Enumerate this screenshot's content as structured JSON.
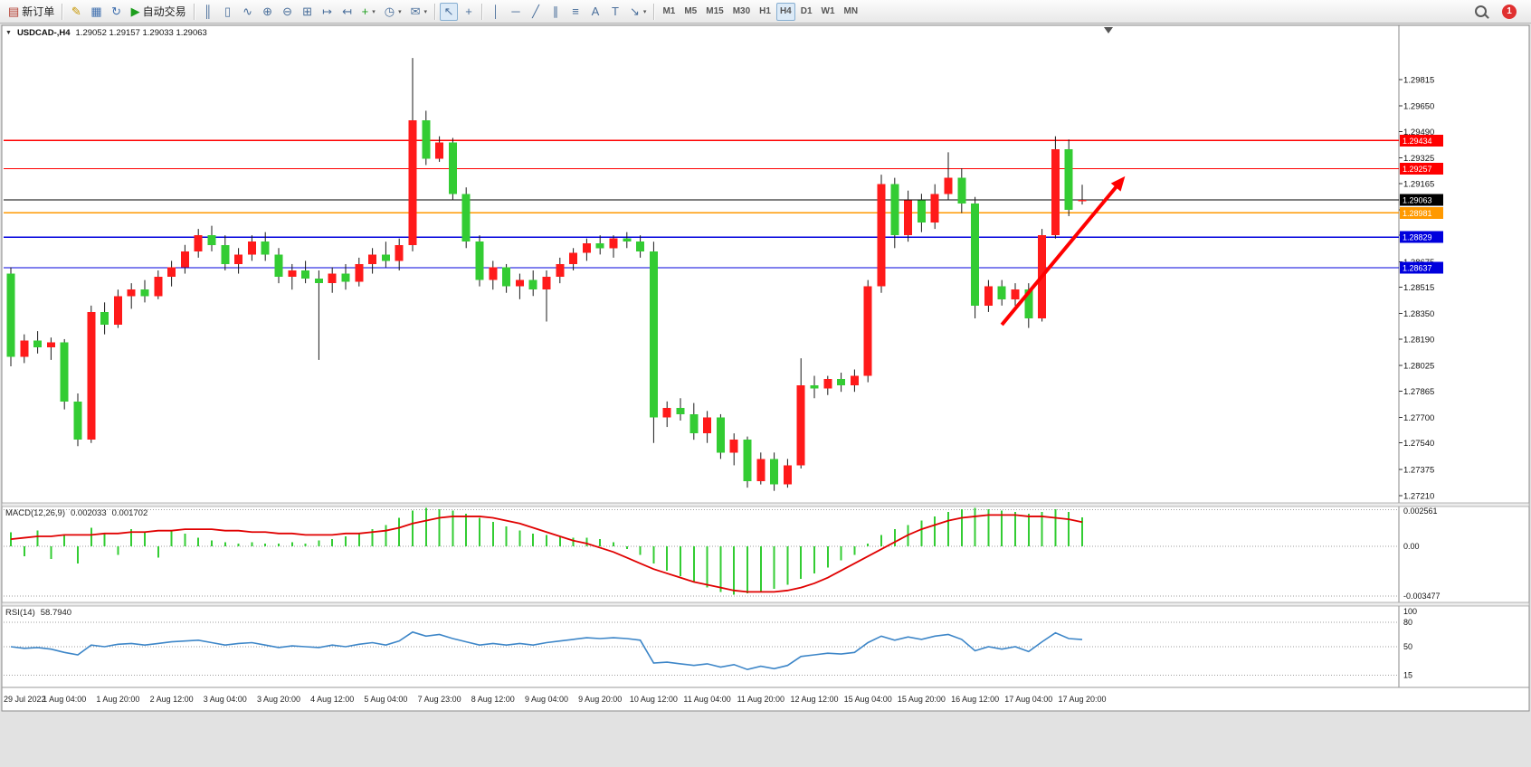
{
  "app": {
    "toolbar": {
      "items": [
        {
          "name": "new-order-button",
          "icon": "new-order-icon",
          "glyph": "▤",
          "glyph_color": "#b23b2e",
          "label": "新订单"
        },
        {
          "type": "sep"
        },
        {
          "name": "metaeditor-button",
          "icon": "pencil-icon",
          "glyph": "✎",
          "glyph_color": "#c79600"
        },
        {
          "name": "market-watch-button",
          "icon": "market-watch-icon",
          "glyph": "▦",
          "glyph_color": "#3f6fae"
        },
        {
          "name": "refresh-button",
          "icon": "refresh-icon",
          "glyph": "↻",
          "glyph_color": "#3f6fae"
        },
        {
          "name": "auto-trading-button",
          "icon": "play-icon",
          "glyph": "▶",
          "glyph_color": "#1d9e1d",
          "label": "自动交易"
        },
        {
          "type": "sep"
        },
        {
          "name": "bar-chart-button",
          "icon": "bar-chart-icon",
          "glyph": "║"
        },
        {
          "name": "candlestick-chart-button",
          "icon": "candlestick-chart-icon",
          "glyph": "▯"
        },
        {
          "name": "line-chart-button",
          "icon": "line-chart-icon",
          "glyph": "∿"
        },
        {
          "name": "zoom-in-button",
          "icon": "zoom-in-icon",
          "glyph": "⊕"
        },
        {
          "name": "zoom-out-button",
          "icon": "zoom-out-icon",
          "glyph": "⊖"
        },
        {
          "name": "tile-windows-button",
          "icon": "tile-windows-icon",
          "glyph": "⊞"
        },
        {
          "name": "auto-scroll-button",
          "icon": "auto-scroll-icon",
          "glyph": "↦"
        },
        {
          "name": "chart-shift-button",
          "icon": "chart-shift-icon",
          "glyph": "↤"
        },
        {
          "name": "indicators-button",
          "icon": "add-indicator-icon",
          "glyph": "+",
          "glyph_color": "#1d9e1d",
          "dropdown": true
        },
        {
          "name": "periods-button",
          "icon": "clock-icon",
          "glyph": "◷",
          "dropdown": true
        },
        {
          "name": "templates-button",
          "icon": "templates-icon",
          "glyph": "✉",
          "dropdown": true
        },
        {
          "type": "sep"
        },
        {
          "name": "cursor-button",
          "icon": "cursor-icon",
          "glyph": "↖",
          "active": true
        },
        {
          "name": "crosshair-button",
          "icon": "crosshair-icon",
          "glyph": "+"
        },
        {
          "type": "sep"
        },
        {
          "name": "vertical-line-button",
          "icon": "vertical-line-icon",
          "glyph": "│"
        },
        {
          "name": "horizontal-line-button",
          "icon": "horizontal-line-icon",
          "glyph": "─"
        },
        {
          "name": "trendline-button",
          "icon": "trendline-icon",
          "glyph": "╱"
        },
        {
          "name": "equidistant-channel-button",
          "icon": "channel-icon",
          "glyph": "∥"
        },
        {
          "name": "fibonacci-button",
          "icon": "fibonacci-icon",
          "glyph": "≡"
        },
        {
          "name": "text-button",
          "icon": "text-icon",
          "glyph": "A"
        },
        {
          "name": "text-label-button",
          "icon": "text-label-icon",
          "glyph": "T"
        },
        {
          "name": "arrows-button",
          "icon": "arrows-icon",
          "glyph": "↘",
          "dropdown": true
        },
        {
          "type": "sep"
        },
        {
          "name": "timeframe-m1-button",
          "label": "M1",
          "tf": true
        },
        {
          "name": "timeframe-m5-button",
          "label": "M5",
          "tf": true
        },
        {
          "name": "timeframe-m15-button",
          "label": "M15",
          "tf": true
        },
        {
          "name": "timeframe-m30-button",
          "label": "M30",
          "tf": true
        },
        {
          "name": "timeframe-h1-button",
          "label": "H1",
          "tf": true
        },
        {
          "name": "timeframe-h4-button",
          "label": "H4",
          "tf": true,
          "active": true
        },
        {
          "name": "timeframe-d1-button",
          "label": "D1",
          "tf": true
        },
        {
          "name": "timeframe-w1-button",
          "label": "W1",
          "tf": true
        },
        {
          "name": "timeframe-mn-button",
          "label": "MN",
          "tf": true
        }
      ],
      "right": [
        {
          "name": "symbol-search-button",
          "icon": "search-icon",
          "search": true
        },
        {
          "name": "notifications-badge",
          "label": "1",
          "badge": true
        }
      ]
    }
  },
  "chart": {
    "symbol_period": "USDCAD-,H4",
    "ohlc": "1.29052 1.29157 1.29033 1.29063"
  },
  "indicators": {
    "macd_label": "MACD(12,26,9)",
    "macd_value": "0.002033",
    "macd_signal_value": "0.001702",
    "rsi_label": "RSI(14)",
    "rsi_value": "58.7940"
  },
  "chart_data": {
    "type": "candlestick",
    "symbol": "USDCAD-",
    "timeframe": "H4",
    "current_ohlc": {
      "open": 1.29052,
      "high": 1.29157,
      "low": 1.29033,
      "close": 1.29063
    },
    "colors": {
      "up": "#ff1a1a",
      "down": "#33cc33",
      "wick": "#1a1a1a",
      "macd_hist": "#33cc33",
      "macd_signal": "#e00000",
      "rsi_line": "#3d86c8",
      "arrow": "#ff0000"
    },
    "price_axis": {
      "ticks": [
        1.29815,
        1.2965,
        1.2949,
        1.29325,
        1.29165,
        1.29,
        1.2884,
        1.28675,
        1.28515,
        1.2835,
        1.2819,
        1.28025,
        1.27865,
        1.277,
        1.2754,
        1.27375,
        1.2721
      ]
    },
    "hlines": [
      {
        "price": 1.29434,
        "color": "#ff0000",
        "label": "1.29434"
      },
      {
        "price": 1.29257,
        "color": "#ff0000",
        "label": "1.29257"
      },
      {
        "price": 1.29063,
        "color": "#000000",
        "label": "1.29063"
      },
      {
        "price": 1.28981,
        "color": "#ff9900",
        "label": "1.28981"
      },
      {
        "price": 1.28829,
        "color": "#0000dd",
        "label": "1.28829"
      },
      {
        "price": 1.28637,
        "color": "#0000dd",
        "label": "1.28637"
      }
    ],
    "candles": [
      [
        1.286,
        1.2864,
        1.2802,
        1.2808
      ],
      [
        1.2808,
        1.2822,
        1.2804,
        1.2818
      ],
      [
        1.2818,
        1.2824,
        1.281,
        1.2814
      ],
      [
        1.2814,
        1.282,
        1.2806,
        1.2817
      ],
      [
        1.2817,
        1.2819,
        1.2775,
        1.278
      ],
      [
        1.278,
        1.2785,
        1.2752,
        1.2756
      ],
      [
        1.2756,
        1.284,
        1.2754,
        1.2836
      ],
      [
        1.2836,
        1.2842,
        1.2822,
        1.2828
      ],
      [
        1.2828,
        1.285,
        1.2826,
        1.2846
      ],
      [
        1.2846,
        1.2854,
        1.2838,
        1.285
      ],
      [
        1.285,
        1.2856,
        1.2842,
        1.2846
      ],
      [
        1.2846,
        1.2862,
        1.2844,
        1.2858
      ],
      [
        1.2858,
        1.2868,
        1.2852,
        1.2864
      ],
      [
        1.2864,
        1.2878,
        1.286,
        1.2874
      ],
      [
        1.2874,
        1.2888,
        1.287,
        1.2884
      ],
      [
        1.2884,
        1.289,
        1.2874,
        1.2878
      ],
      [
        1.2878,
        1.2884,
        1.2862,
        1.2866
      ],
      [
        1.2866,
        1.2876,
        1.286,
        1.2872
      ],
      [
        1.2872,
        1.2884,
        1.2868,
        1.288
      ],
      [
        1.288,
        1.2886,
        1.2868,
        1.2872
      ],
      [
        1.2872,
        1.2876,
        1.2854,
        1.2858
      ],
      [
        1.2858,
        1.2866,
        1.285,
        1.2862
      ],
      [
        1.2862,
        1.2868,
        1.2854,
        1.2857
      ],
      [
        1.2857,
        1.2862,
        1.2806,
        1.2854
      ],
      [
        1.2854,
        1.2864,
        1.2848,
        1.286
      ],
      [
        1.286,
        1.2866,
        1.285,
        1.2855
      ],
      [
        1.2855,
        1.287,
        1.2852,
        1.2866
      ],
      [
        1.2866,
        1.2876,
        1.286,
        1.2872
      ],
      [
        1.2872,
        1.288,
        1.2864,
        1.2868
      ],
      [
        1.2868,
        1.2882,
        1.2862,
        1.2878
      ],
      [
        1.2878,
        1.2995,
        1.2874,
        1.2956
      ],
      [
        1.2956,
        1.2962,
        1.2928,
        1.2932
      ],
      [
        1.2932,
        1.2946,
        1.293,
        1.2942
      ],
      [
        1.2942,
        1.2945,
        1.2906,
        1.291
      ],
      [
        1.291,
        1.2914,
        1.2876,
        1.288
      ],
      [
        1.288,
        1.2884,
        1.2852,
        1.2856
      ],
      [
        1.2856,
        1.2868,
        1.285,
        1.2864
      ],
      [
        1.2864,
        1.2866,
        1.2848,
        1.2852
      ],
      [
        1.2852,
        1.286,
        1.2844,
        1.2856
      ],
      [
        1.2856,
        1.2862,
        1.2846,
        1.285
      ],
      [
        1.285,
        1.2862,
        1.283,
        1.2858
      ],
      [
        1.2858,
        1.287,
        1.2854,
        1.2866
      ],
      [
        1.2866,
        1.2876,
        1.2862,
        1.2873
      ],
      [
        1.2873,
        1.2882,
        1.2868,
        1.2879
      ],
      [
        1.2879,
        1.2884,
        1.2872,
        1.2876
      ],
      [
        1.2876,
        1.2884,
        1.287,
        1.2882
      ],
      [
        1.2882,
        1.2886,
        1.2876,
        1.288
      ],
      [
        1.288,
        1.2884,
        1.287,
        1.2874
      ],
      [
        1.2874,
        1.288,
        1.2754,
        1.277
      ],
      [
        1.277,
        1.278,
        1.2764,
        1.2776
      ],
      [
        1.2776,
        1.2782,
        1.2768,
        1.2772
      ],
      [
        1.2772,
        1.2779,
        1.2756,
        1.276
      ],
      [
        1.276,
        1.2774,
        1.2754,
        1.277
      ],
      [
        1.277,
        1.2772,
        1.2744,
        1.2748
      ],
      [
        1.2748,
        1.276,
        1.274,
        1.2756
      ],
      [
        1.2756,
        1.2758,
        1.2726,
        1.273
      ],
      [
        1.273,
        1.2748,
        1.2728,
        1.2744
      ],
      [
        1.2744,
        1.2748,
        1.2724,
        1.2728
      ],
      [
        1.2728,
        1.2744,
        1.2726,
        1.274
      ],
      [
        1.274,
        1.2807,
        1.2738,
        1.279
      ],
      [
        1.279,
        1.2796,
        1.2782,
        1.2788
      ],
      [
        1.2788,
        1.2796,
        1.2784,
        1.2794
      ],
      [
        1.2794,
        1.2798,
        1.2786,
        1.279
      ],
      [
        1.279,
        1.28,
        1.2786,
        1.2796
      ],
      [
        1.2796,
        1.2856,
        1.2792,
        1.2852
      ],
      [
        1.2852,
        1.2922,
        1.2848,
        1.2916
      ],
      [
        1.2916,
        1.292,
        1.2876,
        1.2884
      ],
      [
        1.2884,
        1.2912,
        1.288,
        1.2906
      ],
      [
        1.2906,
        1.291,
        1.2886,
        1.2892
      ],
      [
        1.2892,
        1.2916,
        1.2888,
        1.291
      ],
      [
        1.291,
        1.2936,
        1.2906,
        1.292
      ],
      [
        1.292,
        1.2926,
        1.2898,
        1.2904
      ],
      [
        1.2904,
        1.2908,
        1.2832,
        1.284
      ],
      [
        1.284,
        1.2856,
        1.2836,
        1.2852
      ],
      [
        1.2852,
        1.2856,
        1.284,
        1.2844
      ],
      [
        1.2844,
        1.2854,
        1.284,
        1.285
      ],
      [
        1.285,
        1.2854,
        1.2826,
        1.2832
      ],
      [
        1.2832,
        1.2888,
        1.283,
        1.2884
      ],
      [
        1.2884,
        1.2946,
        1.2882,
        1.2938
      ],
      [
        1.2938,
        1.2944,
        1.2896,
        1.29
      ],
      [
        1.29052,
        1.29157,
        1.29033,
        1.29063
      ]
    ],
    "x_labels": [
      {
        "bar": 0,
        "label": "29 Jul 2022"
      },
      {
        "bar": 4,
        "label": "1 Aug 04:00"
      },
      {
        "bar": 8,
        "label": "1 Aug 20:00"
      },
      {
        "bar": 12,
        "label": "2 Aug 12:00"
      },
      {
        "bar": 16,
        "label": "3 Aug 04:00"
      },
      {
        "bar": 20,
        "label": "3 Aug 20:00"
      },
      {
        "bar": 24,
        "label": "4 Aug 12:00"
      },
      {
        "bar": 28,
        "label": "5 Aug 04:00"
      },
      {
        "bar": 32,
        "label": "7 Aug 23:00"
      },
      {
        "bar": 36,
        "label": "8 Aug 12:00"
      },
      {
        "bar": 40,
        "label": "9 Aug 04:00"
      },
      {
        "bar": 44,
        "label": "9 Aug 20:00"
      },
      {
        "bar": 48,
        "label": "10 Aug 12:00"
      },
      {
        "bar": 52,
        "label": "11 Aug 04:00"
      },
      {
        "bar": 56,
        "label": "11 Aug 20:00"
      },
      {
        "bar": 60,
        "label": "12 Aug 12:00"
      },
      {
        "bar": 64,
        "label": "15 Aug 04:00"
      },
      {
        "bar": 68,
        "label": "15 Aug 20:00"
      },
      {
        "bar": 72,
        "label": "16 Aug 12:00"
      },
      {
        "bar": 76,
        "label": "17 Aug 04:00"
      },
      {
        "bar": 80,
        "label": "17 Aug 20:00"
      }
    ],
    "trend_arrow": {
      "from_bar": 74,
      "from_price": 1.2828,
      "to_bar": 83.2,
      "to_price": 1.2921,
      "color": "#ff0000"
    },
    "macd": {
      "label": "MACD(12,26,9)",
      "value": 0.002033,
      "signal_value": 0.001702,
      "axis_values": [
        0.002561,
        0,
        -0.003477
      ],
      "axis_labels": [
        "0.002561",
        "0.00",
        "-0.003477"
      ],
      "hist": [
        0.001,
        -0.0007,
        0.0011,
        -0.0009,
        0.0008,
        -0.0012,
        0.0013,
        0.0009,
        -0.0006,
        0.0012,
        0.001,
        -0.0008,
        0.0011,
        0.0009,
        0.0006,
        0.0004,
        0.0003,
        0.0002,
        0.0003,
        0.0002,
        0.0002,
        0.0003,
        0.0002,
        0.0004,
        0.0005,
        0.0007,
        0.0009,
        0.0012,
        0.0015,
        0.002,
        0.0025,
        0.0027,
        0.0026,
        0.0025,
        0.0023,
        0.002,
        0.0017,
        0.0014,
        0.0011,
        0.0009,
        0.0008,
        0.0007,
        0.0006,
        0.0006,
        0.0005,
        0.0003,
        -0.0002,
        -0.0006,
        -0.0012,
        -0.0017,
        -0.0021,
        -0.0025,
        -0.0029,
        -0.0032,
        -0.0034,
        -0.0033,
        -0.0032,
        -0.003,
        -0.0027,
        -0.0023,
        -0.0019,
        -0.0015,
        -0.001,
        -0.0006,
        0.0002,
        0.0008,
        0.0012,
        0.0015,
        0.0018,
        0.0021,
        0.0024,
        0.0026,
        0.0027,
        0.0026,
        0.0025,
        0.0024,
        0.0023,
        0.0024,
        0.0026,
        0.0024,
        0.002033
      ],
      "signal": [
        0.0005,
        0.0006,
        0.0007,
        0.0007,
        0.0008,
        0.0008,
        0.0008,
        0.0009,
        0.0009,
        0.001,
        0.001,
        0.0011,
        0.0011,
        0.0012,
        0.0012,
        0.0012,
        0.0011,
        0.0011,
        0.001,
        0.001,
        0.0009,
        0.0009,
        0.0008,
        0.0008,
        0.0008,
        0.0009,
        0.0009,
        0.001,
        0.0011,
        0.0013,
        0.0016,
        0.0018,
        0.002,
        0.0021,
        0.0021,
        0.0021,
        0.002,
        0.0018,
        0.0016,
        0.0013,
        0.001,
        0.0007,
        0.0004,
        0.0002,
        -0.0001,
        -0.0004,
        -0.0008,
        -0.0012,
        -0.0016,
        -0.0019,
        -0.0022,
        -0.0025,
        -0.0027,
        -0.0029,
        -0.0031,
        -0.0032,
        -0.0032,
        -0.0032,
        -0.0031,
        -0.0029,
        -0.0026,
        -0.0022,
        -0.0017,
        -0.0012,
        -0.0007,
        -0.0002,
        0.0003,
        0.0008,
        0.0012,
        0.0015,
        0.0018,
        0.002,
        0.0021,
        0.0022,
        0.0022,
        0.0022,
        0.0021,
        0.0021,
        0.002,
        0.0019,
        0.001702
      ]
    },
    "rsi": {
      "label": "RSI(14)",
      "value": 58.794,
      "levels": [
        80,
        50,
        15
      ],
      "axis_labels": [
        "100",
        "80",
        "50",
        "15"
      ],
      "values": [
        50,
        48,
        49,
        47,
        43,
        40,
        52,
        50,
        53,
        54,
        52,
        54,
        56,
        57,
        58,
        55,
        52,
        54,
        55,
        52,
        49,
        51,
        50,
        49,
        52,
        50,
        53,
        55,
        52,
        57,
        68,
        63,
        65,
        60,
        56,
        52,
        54,
        52,
        54,
        52,
        55,
        57,
        59,
        61,
        60,
        61,
        60,
        58,
        30,
        31,
        29,
        27,
        29,
        25,
        28,
        22,
        26,
        23,
        27,
        38,
        40,
        42,
        41,
        43,
        55,
        63,
        58,
        62,
        59,
        63,
        65,
        59,
        45,
        50,
        47,
        50,
        44,
        56,
        67,
        60,
        58.794
      ]
    }
  }
}
